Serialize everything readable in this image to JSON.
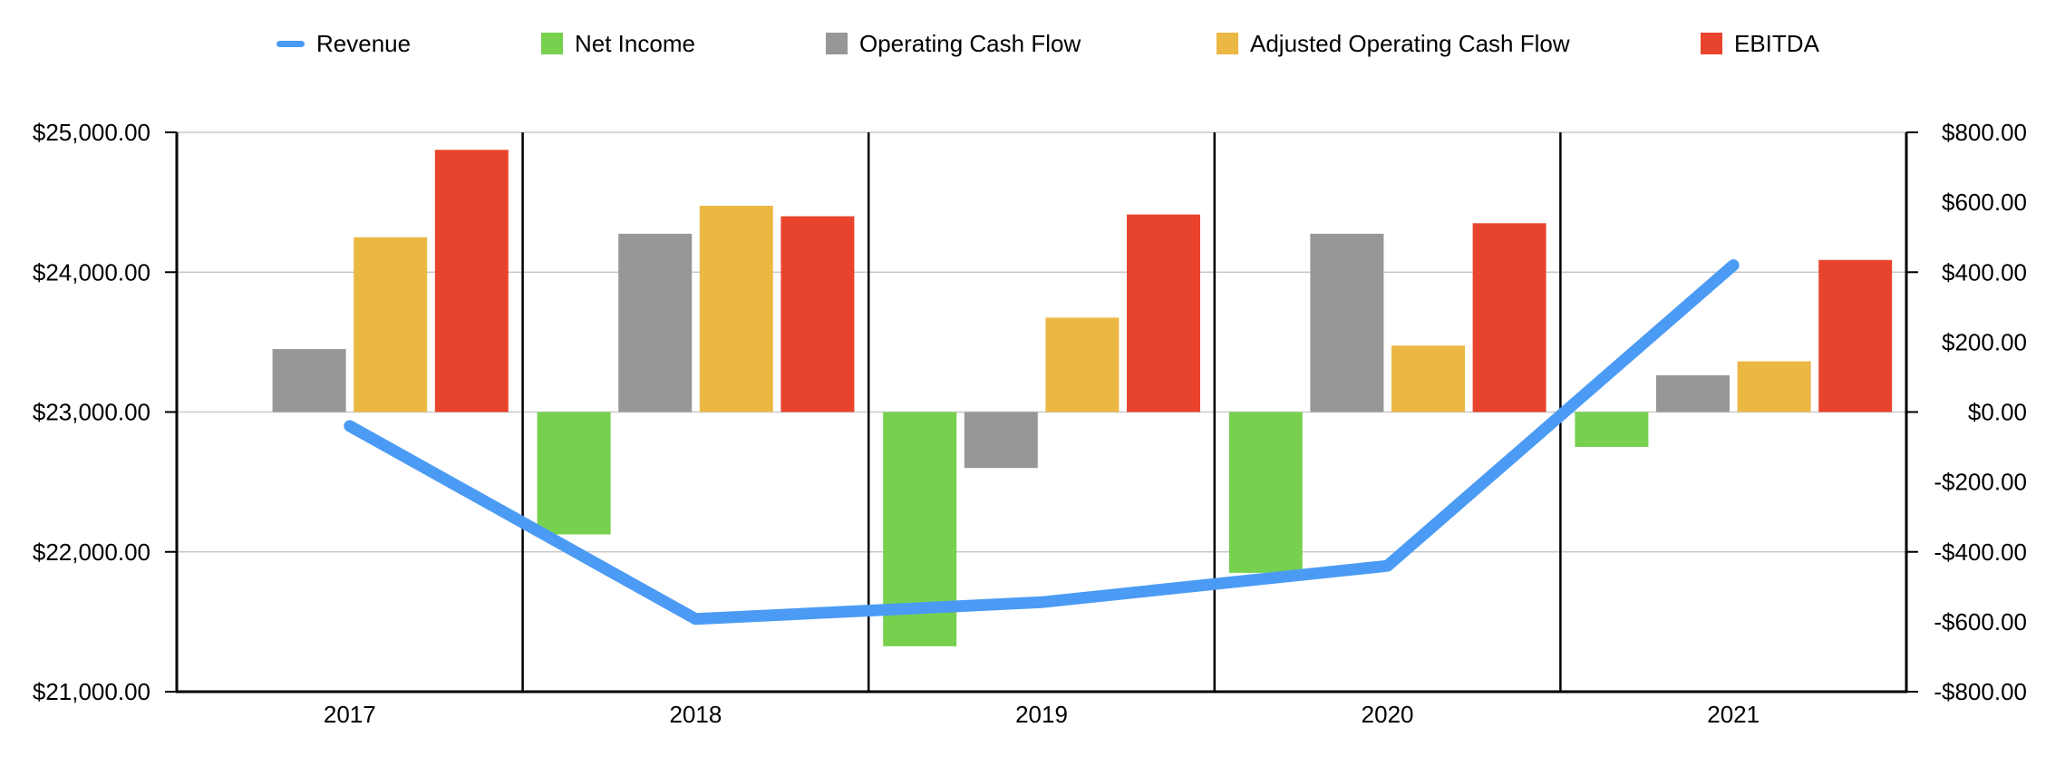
{
  "legend": {
    "items": [
      {
        "label": "Revenue",
        "marker": "line",
        "color": "#4B9BF4"
      },
      {
        "label": "Net Income",
        "marker": "square",
        "color": "#77D14E"
      },
      {
        "label": "Operating Cash Flow",
        "marker": "square",
        "color": "#979797"
      },
      {
        "label": "Adjusted Operating Cash Flow",
        "marker": "square",
        "color": "#EBB844"
      },
      {
        "label": "EBITDA",
        "marker": "square",
        "color": "#E8442D"
      }
    ]
  },
  "chart_data": {
    "type": "combo-bar-line",
    "categories": [
      "2017",
      "2018",
      "2019",
      "2020",
      "2021"
    ],
    "left_axis": {
      "ticks": [
        "$25,000.00",
        "$24,000.00",
        "$23,000.00",
        "$22,000.00",
        "$21,000.00"
      ],
      "values": [
        25000,
        24000,
        23000,
        22000,
        21000
      ],
      "min": 21000,
      "max": 25000
    },
    "right_axis": {
      "ticks": [
        "$800.00",
        "$600.00",
        "$400.00",
        "$200.00",
        "$0.00",
        "-$200.00",
        "-$400.00",
        "-$600.00",
        "-$800.00"
      ],
      "values": [
        800,
        600,
        400,
        200,
        0,
        -200,
        -400,
        -600,
        -800
      ],
      "min": -800,
      "max": 800
    },
    "line_series": {
      "name": "Revenue",
      "axis": "left",
      "color": "#4B9BF4",
      "values": [
        22900,
        21520,
        21640,
        21900,
        24050
      ]
    },
    "bar_series": [
      {
        "name": "Net Income",
        "axis": "right",
        "color": "#77D14E",
        "values": [
          null,
          -350,
          -670,
          -460,
          -100
        ]
      },
      {
        "name": "Operating Cash Flow",
        "axis": "right",
        "color": "#979797",
        "values": [
          180,
          510,
          -160,
          510,
          105
        ]
      },
      {
        "name": "Adjusted Operating Cash Flow",
        "axis": "right",
        "color": "#EBB844",
        "values": [
          500,
          590,
          270,
          190,
          145
        ]
      },
      {
        "name": "EBITDA",
        "axis": "right",
        "color": "#E8442D",
        "values": [
          750,
          560,
          565,
          540,
          435
        ]
      }
    ],
    "grid": true,
    "gridline_left_values": [
      25000,
      24000,
      23000,
      22000,
      21000
    ],
    "legend_position": "top"
  }
}
